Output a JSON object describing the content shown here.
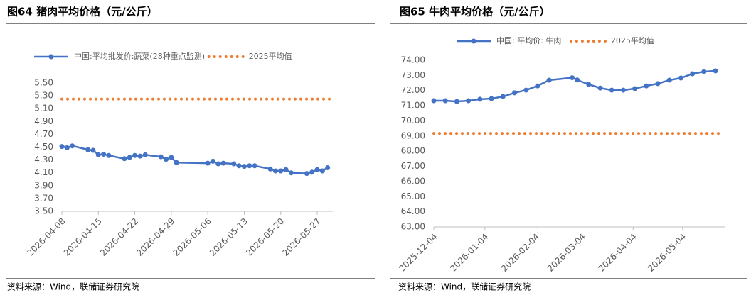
{
  "chart_data": [
    {
      "type": "line",
      "title": "图64 猪肉平均价格（元/公斤）",
      "source": "资料来源：Wind，联储证券研究院",
      "x": [
        "2026-04-08",
        "2026-04-09",
        "2026-04-10",
        "2026-04-13",
        "2026-04-14",
        "2026-04-15",
        "2026-04-16",
        "2026-04-17",
        "2026-04-20",
        "2026-04-21",
        "2026-04-22",
        "2026-04-23",
        "2026-04-24",
        "2026-04-27",
        "2026-04-28",
        "2026-04-29",
        "2026-04-30",
        "2026-05-06",
        "2026-05-07",
        "2026-05-08",
        "2026-05-09",
        "2026-05-11",
        "2026-05-12",
        "2026-05-13",
        "2026-05-14",
        "2026-05-15",
        "2026-05-18",
        "2026-05-19",
        "2026-05-20",
        "2026-05-21",
        "2026-05-22",
        "2026-05-25",
        "2026-05-26",
        "2026-05-27",
        "2026-05-28",
        "2026-05-29"
      ],
      "series": [
        {
          "name": "中国:平均批发价:蔬菜(28种重点监测)",
          "color": "#4472c4",
          "values": [
            4.51,
            4.49,
            4.52,
            4.46,
            4.45,
            4.38,
            4.39,
            4.37,
            4.32,
            4.34,
            4.37,
            4.36,
            4.38,
            4.35,
            4.31,
            4.34,
            4.26,
            4.25,
            4.28,
            4.24,
            4.25,
            4.24,
            4.21,
            4.2,
            4.21,
            4.21,
            4.16,
            4.13,
            4.13,
            4.15,
            4.1,
            4.09,
            4.11,
            4.15,
            4.13,
            4.18
          ]
        }
      ],
      "reference": {
        "name": "2025平均值",
        "color": "#ed7d31",
        "value": 5.25
      },
      "xlim": [
        "2026-04-08",
        "2026-05-30"
      ],
      "xticks": [
        "2026-04-08",
        "2026-04-15",
        "2026-04-22",
        "2026-04-29",
        "2026-05-06",
        "2026-05-13",
        "2026-05-20",
        "2026-05-27"
      ],
      "ylim": [
        3.5,
        5.5
      ],
      "yticks": [
        {
          "value": 3.5,
          "label": "3.50"
        },
        {
          "value": 3.7,
          "label": "3.70"
        },
        {
          "value": 3.9,
          "label": "3.90"
        },
        {
          "value": 4.1,
          "label": "4.10"
        },
        {
          "value": 4.3,
          "label": "4.30"
        },
        {
          "value": 4.5,
          "label": "4.50"
        },
        {
          "value": 4.7,
          "label": "4.70"
        },
        {
          "value": 4.9,
          "label": "4.90"
        },
        {
          "value": 5.1,
          "label": "5.10"
        },
        {
          "value": 5.3,
          "label": "5.30"
        },
        {
          "value": 5.5,
          "label": "5.50"
        }
      ],
      "grid": false
    },
    {
      "type": "line",
      "title": "图65 牛肉平均价格（元/公斤）",
      "source": "资料来源：Wind，联储证券研究院",
      "x": [
        "2025-12-04",
        "2025-12-11",
        "2025-12-18",
        "2025-12-25",
        "2026-01-01",
        "2026-01-08",
        "2026-01-15",
        "2026-01-22",
        "2026-01-29",
        "2026-02-05",
        "2026-02-12",
        "2026-02-26",
        "2026-03-01",
        "2026-03-08",
        "2026-03-15",
        "2026-03-22",
        "2026-03-29",
        "2026-04-05",
        "2026-04-12",
        "2026-04-19",
        "2026-04-26",
        "2026-05-03",
        "2026-05-10",
        "2026-05-17",
        "2026-05-24"
      ],
      "series": [
        {
          "name": "中国: 平均价: 牛肉",
          "color": "#4472c4",
          "values": [
            71.33,
            71.33,
            71.28,
            71.33,
            71.43,
            71.47,
            71.61,
            71.85,
            72.03,
            72.31,
            72.69,
            72.85,
            72.7,
            72.41,
            72.17,
            72.03,
            72.03,
            72.13,
            72.31,
            72.46,
            72.69,
            72.83,
            73.11,
            73.25,
            73.3
          ]
        }
      ],
      "reference": {
        "name": "2025平均值",
        "color": "#ed7d31",
        "value": 69.17
      },
      "xlim": [
        "2025-12-04",
        "2026-05-30"
      ],
      "xticks": [
        "2025-12-04",
        "2026-01-04",
        "2026-02-04",
        "2026-03-04",
        "2026-04-04",
        "2026-05-04"
      ],
      "ylim": [
        63,
        74
      ],
      "yticks": [
        {
          "value": 63,
          "label": "63.00"
        },
        {
          "value": 64,
          "label": "64.00"
        },
        {
          "value": 65,
          "label": "65.00"
        },
        {
          "value": 66,
          "label": "66.00"
        },
        {
          "value": 67,
          "label": "67.00"
        },
        {
          "value": 68,
          "label": "68.00"
        },
        {
          "value": 69,
          "label": "69.00"
        },
        {
          "value": 70,
          "label": "70.00"
        },
        {
          "value": 71,
          "label": "71.00"
        },
        {
          "value": 72,
          "label": "72.00"
        },
        {
          "value": 73,
          "label": "73.00"
        },
        {
          "value": 74,
          "label": "74.00"
        }
      ],
      "grid": false
    }
  ]
}
